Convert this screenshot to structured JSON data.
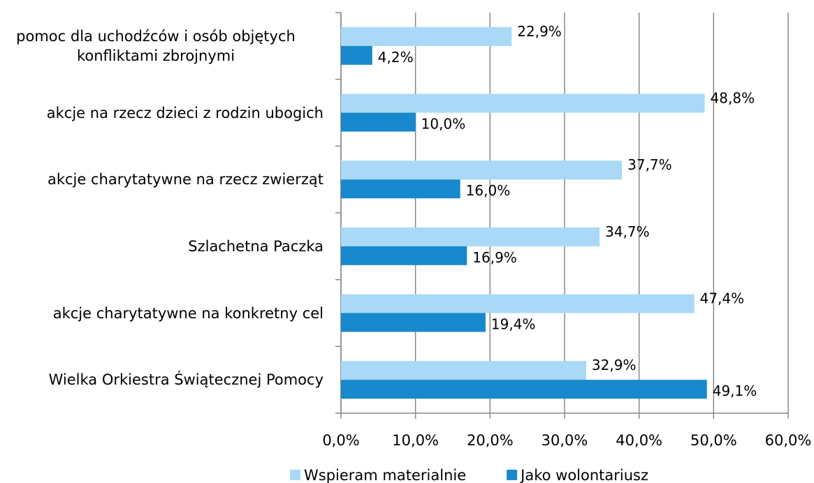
{
  "chart_data": {
    "type": "bar",
    "orientation": "horizontal",
    "categories": [
      "pomoc dla uchodźców i osób objętych konfliktami zbrojnymi",
      "akcje na rzecz dzieci z rodzin ubogich",
      "akcje charytatywne na rzecz zwierząt",
      "Szlachetna Paczka",
      "akcje charytatywne na konkretny cel",
      "Wielka Orkiestra Świątecznej Pomocy"
    ],
    "series": [
      {
        "name": "Wspieram materialnie",
        "color": "#a9d9f6",
        "values": [
          22.9,
          48.8,
          37.7,
          34.7,
          47.4,
          32.9
        ],
        "value_labels": [
          "22,9%",
          "48,8%",
          "37,7%",
          "34,7%",
          "47,4%",
          "32,9%"
        ]
      },
      {
        "name": "Jako wolontariusz",
        "color": "#1789cc",
        "values": [
          4.2,
          10.0,
          16.0,
          16.9,
          19.4,
          49.1
        ],
        "value_labels": [
          "4,2%",
          "10,0%",
          "16,0%",
          "16,9%",
          "19,4%",
          "49,1%"
        ]
      }
    ],
    "xlim": [
      0,
      60
    ],
    "xticks": [
      {
        "value": 0,
        "label": "0,0%"
      },
      {
        "value": 10,
        "label": "10,0%"
      },
      {
        "value": 20,
        "label": "20,0%"
      },
      {
        "value": 30,
        "label": "30,0%"
      },
      {
        "value": 40,
        "label": "40,0%"
      },
      {
        "value": 50,
        "label": "50,0%"
      },
      {
        "value": 60,
        "label": "60,0%"
      }
    ],
    "grid": true,
    "legend": "bottom"
  }
}
